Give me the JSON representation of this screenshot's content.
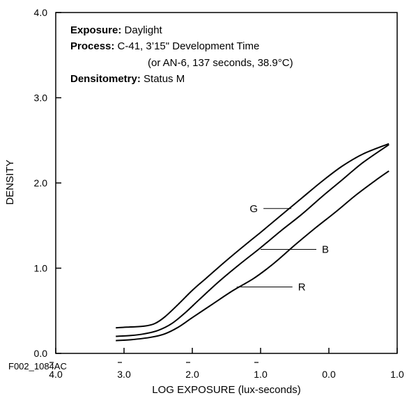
{
  "chart_data": {
    "type": "line",
    "xlabel": "LOG EXPOSURE (lux-seconds)",
    "ylabel": "DENSITY",
    "xlim": [
      -4.0,
      1.0
    ],
    "ylim": [
      0.0,
      4.0
    ],
    "x_ticks": [
      {
        "value": -4.0,
        "label": "4.0"
      },
      {
        "value": -3.0,
        "label": "3.0"
      },
      {
        "value": -2.0,
        "label": "2.0"
      },
      {
        "value": -1.0,
        "label": "1.0"
      },
      {
        "value": 0.0,
        "label": "0.0"
      },
      {
        "value": 1.0,
        "label": "1.0"
      }
    ],
    "y_ticks": [
      {
        "value": 0.0,
        "label": "0.0"
      },
      {
        "value": 1.0,
        "label": "1.0"
      },
      {
        "value": 2.0,
        "label": "2.0"
      },
      {
        "value": 3.0,
        "label": "3.0"
      },
      {
        "value": 4.0,
        "label": "4.0"
      }
    ],
    "grid": false,
    "figure_id": "F002_1084AC",
    "annotations": [
      {
        "bold": "Exposure:",
        "text": " Daylight"
      },
      {
        "bold": "Process:",
        "text": " C-41, 3’15\" Development Time"
      },
      {
        "bold": "",
        "text": "(or AN-6, 137 seconds, 38.9°C)"
      },
      {
        "bold": "Densitometry:",
        "text": " Status M"
      }
    ],
    "series": [
      {
        "name": "G",
        "x": [
          -3.12,
          -2.9,
          -2.7,
          -2.55,
          -2.4,
          -2.2,
          -2.0,
          -1.8,
          -1.5,
          -1.2,
          -1.0,
          -0.7,
          -0.4,
          -0.1,
          0.2,
          0.5,
          0.88
        ],
        "y": [
          0.3,
          0.31,
          0.32,
          0.35,
          0.43,
          0.58,
          0.74,
          0.88,
          1.09,
          1.29,
          1.42,
          1.62,
          1.82,
          2.02,
          2.2,
          2.34,
          2.46
        ]
      },
      {
        "name": "B",
        "x": [
          -3.12,
          -2.9,
          -2.7,
          -2.5,
          -2.3,
          -2.1,
          -1.9,
          -1.6,
          -1.3,
          -1.0,
          -0.7,
          -0.4,
          -0.1,
          0.2,
          0.5,
          0.88
        ],
        "y": [
          0.2,
          0.21,
          0.23,
          0.27,
          0.35,
          0.48,
          0.63,
          0.85,
          1.05,
          1.24,
          1.44,
          1.63,
          1.84,
          2.04,
          2.24,
          2.45
        ]
      },
      {
        "name": "R",
        "x": [
          -3.12,
          -2.9,
          -2.6,
          -2.4,
          -2.2,
          -2.0,
          -1.7,
          -1.4,
          -1.1,
          -0.8,
          -0.5,
          -0.2,
          0.1,
          0.4,
          0.7,
          0.88
        ],
        "y": [
          0.15,
          0.16,
          0.19,
          0.23,
          0.31,
          0.42,
          0.58,
          0.74,
          0.88,
          1.06,
          1.27,
          1.47,
          1.66,
          1.86,
          2.04,
          2.14
        ]
      }
    ],
    "series_labels": [
      {
        "name": "G",
        "at_x": -0.55,
        "at_y": 1.7
      },
      {
        "name": "B",
        "at_x": -1.0,
        "at_y": 1.22
      },
      {
        "name": "R",
        "at_x": -1.35,
        "at_y": 0.78
      }
    ]
  }
}
